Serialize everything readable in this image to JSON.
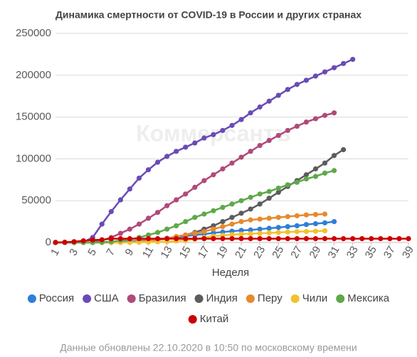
{
  "chart_data": {
    "type": "line",
    "title": "Динамика смертности от COVID-19 в России и других странах",
    "watermark": "Коммерсантъ",
    "x_label": "Неделя",
    "footer": "Данные обновлены 22.10.2020 в 10:50 по московскому времени",
    "x": [
      1,
      2,
      3,
      4,
      5,
      6,
      7,
      8,
      9,
      10,
      11,
      12,
      13,
      14,
      15,
      16,
      17,
      18,
      19,
      20,
      21,
      22,
      23,
      24,
      25,
      26,
      27,
      28,
      29,
      30,
      31,
      32,
      33,
      34,
      35,
      36,
      37,
      38,
      39
    ],
    "xlim": [
      1,
      39
    ],
    "xticks": [
      1,
      3,
      5,
      7,
      9,
      11,
      13,
      15,
      17,
      19,
      21,
      23,
      25,
      27,
      29,
      31,
      33,
      35,
      37,
      39
    ],
    "ylim": [
      0,
      250000
    ],
    "yticks": [
      0,
      50000,
      100000,
      150000,
      200000,
      250000
    ],
    "grid": true,
    "series": [
      {
        "name": "Россия",
        "color": "#2f7ed8",
        "values": [
          0,
          0,
          0,
          0,
          100,
          400,
          700,
          1200,
          1600,
          2000,
          2500,
          3200,
          4500,
          6000,
          7500,
          9000,
          10000,
          11500,
          12500,
          13500,
          14500,
          15000,
          16000,
          17000,
          18000,
          19000,
          20000,
          21500,
          22500,
          23500,
          25000,
          null,
          null,
          null,
          null,
          null,
          null,
          null,
          null
        ]
      },
      {
        "name": "США",
        "color": "#6a4bb5",
        "values": [
          0,
          0,
          0,
          500,
          6000,
          22000,
          37000,
          51000,
          64000,
          77000,
          87000,
          96000,
          103000,
          109000,
          114000,
          119000,
          125000,
          129000,
          134000,
          140000,
          147000,
          155000,
          162000,
          169000,
          176000,
          183000,
          189000,
          194000,
          199000,
          204000,
          209000,
          214000,
          219000,
          null,
          null,
          null,
          null,
          null,
          null
        ]
      },
      {
        "name": "Бразилия",
        "color": "#b04a7a",
        "values": [
          0,
          0,
          0,
          0,
          400,
          2500,
          6000,
          11000,
          16000,
          22000,
          29000,
          36000,
          44000,
          51000,
          58000,
          66000,
          74000,
          81000,
          88000,
          95000,
          102000,
          109000,
          116000,
          122000,
          128000,
          134000,
          139000,
          144000,
          148000,
          152000,
          155000,
          null,
          null,
          null,
          null,
          null,
          null,
          null,
          null
        ]
      },
      {
        "name": "Индия",
        "color": "#5c5c5c",
        "values": [
          0,
          0,
          0,
          0,
          0,
          0,
          100,
          300,
          600,
          1000,
          2000,
          3000,
          5000,
          7000,
          9000,
          12000,
          16000,
          20000,
          25000,
          30000,
          35000,
          40000,
          46000,
          53000,
          60000,
          67000,
          74000,
          81000,
          88000,
          95000,
          104000,
          111000,
          null,
          null,
          null,
          null,
          null,
          null,
          null
        ]
      },
      {
        "name": "Перу",
        "color": "#e8892d",
        "values": [
          0,
          0,
          0,
          0,
          0,
          0,
          0,
          100,
          400,
          1000,
          2000,
          3500,
          5000,
          7000,
          9000,
          11000,
          13000,
          16000,
          19000,
          22000,
          25000,
          27000,
          28000,
          29000,
          30000,
          31000,
          32000,
          33000,
          33500,
          34000,
          null,
          null,
          null,
          null,
          null,
          null,
          null,
          null,
          null
        ]
      },
      {
        "name": "Чили",
        "color": "#f2c12e",
        "values": [
          0,
          0,
          0,
          0,
          0,
          0,
          0,
          0,
          100,
          300,
          500,
          800,
          1000,
          1800,
          2500,
          4000,
          6000,
          7500,
          8500,
          9500,
          10000,
          10500,
          11000,
          11500,
          12000,
          12500,
          13000,
          13200,
          13500,
          14000,
          null,
          null,
          null,
          null,
          null,
          null,
          null,
          null,
          null
        ]
      },
      {
        "name": "Мексика",
        "color": "#5fa84a",
        "values": [
          0,
          0,
          0,
          0,
          0,
          300,
          1000,
          2500,
          4000,
          6000,
          9000,
          12000,
          16000,
          20000,
          25000,
          30000,
          34000,
          38000,
          42000,
          46000,
          50000,
          54000,
          58000,
          61000,
          65000,
          69000,
          72000,
          76000,
          79000,
          83000,
          86000,
          null,
          null,
          null,
          null,
          null,
          null,
          null,
          null
        ]
      },
      {
        "name": "Китай",
        "color": "#cc0000",
        "values": [
          100,
          300,
          1000,
          2000,
          3000,
          3300,
          4600,
          4600,
          4600,
          4600,
          4600,
          4600,
          4600,
          4600,
          4600,
          4600,
          4600,
          4600,
          4600,
          4600,
          4600,
          4600,
          4600,
          4600,
          4600,
          4600,
          4600,
          4600,
          4600,
          4600,
          4600,
          4600,
          4600,
          4600,
          4600,
          4600,
          4600,
          4600,
          4600
        ]
      }
    ]
  }
}
